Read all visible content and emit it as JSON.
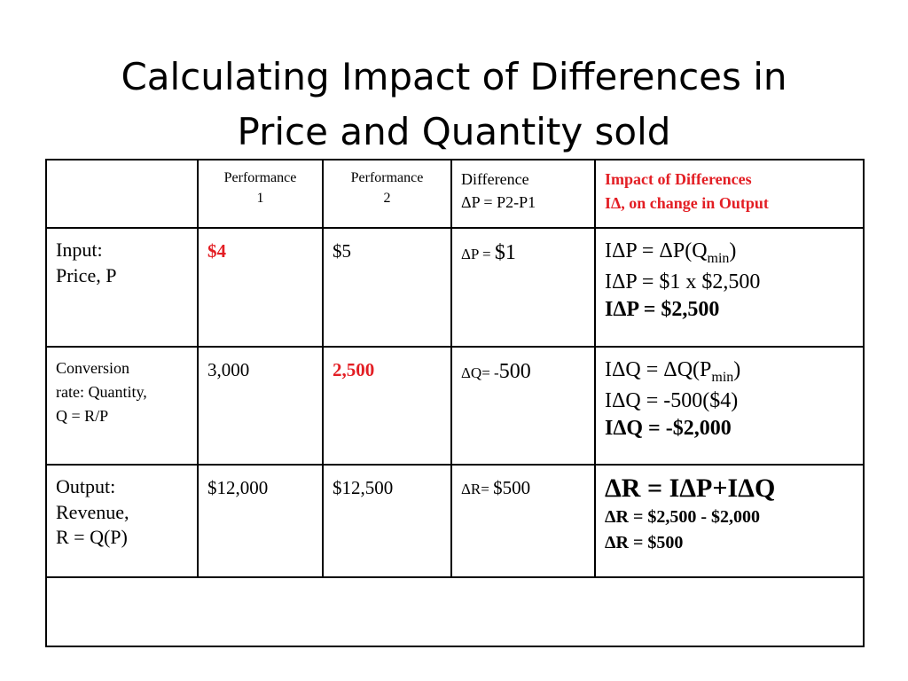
{
  "title": {
    "line1": "Calculating Impact of Differences in",
    "line2": "Price and Quantity sold"
  },
  "header": {
    "perf1": [
      "Performance",
      "1"
    ],
    "perf2": [
      "Performance",
      "2"
    ],
    "difference": [
      "Difference",
      "ΔP = P2-P1"
    ],
    "impact": [
      "Impact of Differences",
      "IΔ, on change in Output"
    ]
  },
  "rows": {
    "input": {
      "label": [
        "Input:",
        "Price, P"
      ],
      "perf1": "$4",
      "perf2": "$5",
      "diff_label": "ΔP = ",
      "diff_value": "$1",
      "impact_line1_pre": "IΔP = ΔP(Q",
      "impact_line1_sub": "min",
      "impact_line1_post": ")",
      "impact_line2": "IΔP = $1 x $2,500",
      "impact_line3": "IΔP = $2,500"
    },
    "conversion": {
      "label": [
        "Conversion",
        "rate: Quantity,",
        "Q = R/P"
      ],
      "perf1": "3,000",
      "perf2": "2,500",
      "diff_label": "ΔQ= -",
      "diff_value": "500",
      "impact_line1_pre": "IΔQ = ΔQ(P",
      "impact_line1_sub": "min",
      "impact_line1_post": ")",
      "impact_line2": "IΔQ = -500($4)",
      "impact_line3": "IΔQ = -$2,000"
    },
    "output": {
      "label": [
        "Output:",
        "Revenue,",
        "R = Q(P)"
      ],
      "perf1": "$12,000",
      "perf2": "$12,500",
      "diff_label": "ΔR= ",
      "diff_value": "$500",
      "impact_line1": "ΔR = IΔP+IΔQ",
      "impact_line2": "ΔR = $2,500 - $2,000",
      "impact_line3": "ΔR = $500"
    }
  },
  "colors": {
    "highlight": "#e31e24"
  }
}
